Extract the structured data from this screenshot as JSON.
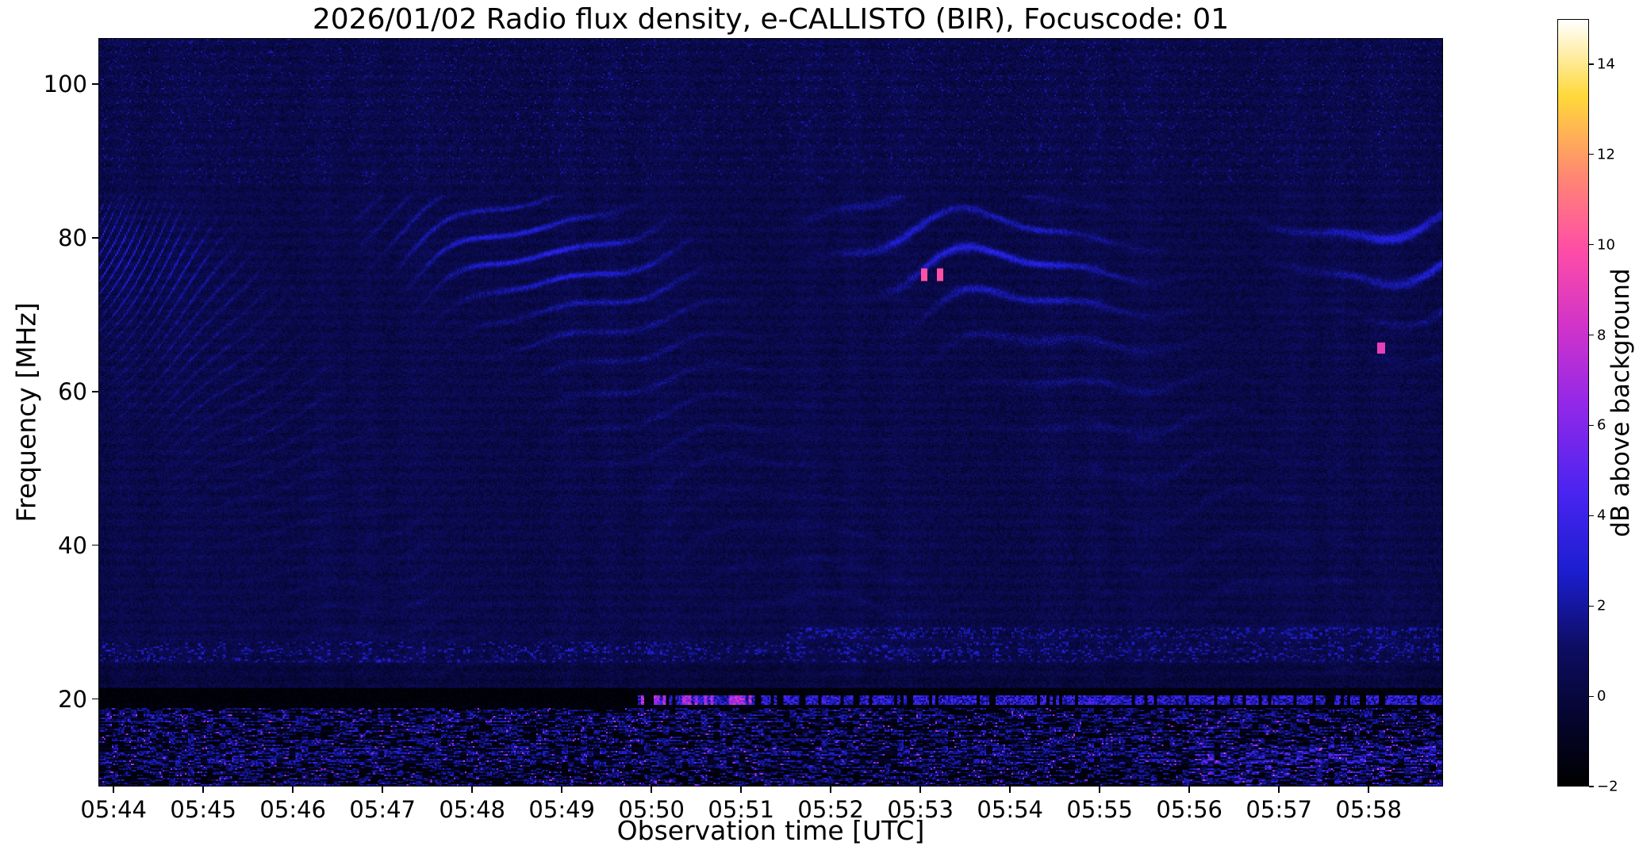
{
  "chart_data": {
    "type": "heatmap",
    "title": "2026/01/02  Radio flux density, e-CALLISTO (BIR), Focuscode: 01",
    "xlabel": "Observation time [UTC]",
    "ylabel": "Frequency [MHz]",
    "background": "#ffffff",
    "grid": false,
    "x_axis": {
      "tick_labels": [
        "05:44",
        "05:45",
        "05:46",
        "05:47",
        "05:48",
        "05:49",
        "05:50",
        "05:51",
        "05:52",
        "05:53",
        "05:54",
        "05:55",
        "05:56",
        "05:57",
        "05:58"
      ],
      "tick_minutes": [
        0,
        1,
        2,
        3,
        4,
        5,
        6,
        7,
        8,
        9,
        10,
        11,
        12,
        13,
        14
      ],
      "range_minutes": [
        -0.17,
        14.83
      ]
    },
    "y_axis": {
      "tick_labels": [
        "20",
        "40",
        "60",
        "80",
        "100"
      ],
      "tick_values": [
        20,
        40,
        60,
        80,
        100
      ],
      "range_mhz": [
        8.6,
        106.0
      ]
    },
    "colorbar": {
      "label": "dB above background",
      "tick_labels": [
        "−2",
        "0",
        "2",
        "4",
        "6",
        "8",
        "10",
        "12",
        "14"
      ],
      "tick_values": [
        -2,
        0,
        2,
        4,
        6,
        8,
        10,
        12,
        14
      ],
      "vmin": -2,
      "vmax": 15,
      "stops": [
        {
          "pos": 0.0,
          "color": "#000000"
        },
        {
          "pos": 0.09,
          "color": "#050530"
        },
        {
          "pos": 0.18,
          "color": "#0d0d62"
        },
        {
          "pos": 0.28,
          "color": "#1c1ed0"
        },
        {
          "pos": 0.38,
          "color": "#4824f0"
        },
        {
          "pos": 0.5,
          "color": "#9428e8"
        },
        {
          "pos": 0.6,
          "color": "#d133c9"
        },
        {
          "pos": 0.7,
          "color": "#ff4da6"
        },
        {
          "pos": 0.8,
          "color": "#ff8a70"
        },
        {
          "pos": 0.9,
          "color": "#ffd83a"
        },
        {
          "pos": 1.0,
          "color": "#ffffff"
        }
      ]
    },
    "features": {
      "background_db": 0.4,
      "fringe_center_mhz": 78.5,
      "fringe_span_mhz": [
        23,
        85.5
      ],
      "fringe_spacing_mhz": 5.0,
      "top_speckle_above_mhz": 87,
      "speckle_lane_mhz": 26,
      "late_speckle_line_mhz": 28.5,
      "rfi_top_mhz": 21.3,
      "rfi_step_minute": 5.8,
      "rfi_line_mhz": 19.8,
      "bursts": [
        {
          "minute": 9.05,
          "mhz": 75.2,
          "w": 0.08,
          "h": 1.6,
          "db": 10
        },
        {
          "minute": 9.22,
          "mhz": 75.2,
          "w": 0.08,
          "h": 1.6,
          "db": 10
        },
        {
          "minute": 14.15,
          "mhz": 65.6,
          "w": 0.08,
          "h": 1.4,
          "db": 9
        }
      ]
    }
  }
}
